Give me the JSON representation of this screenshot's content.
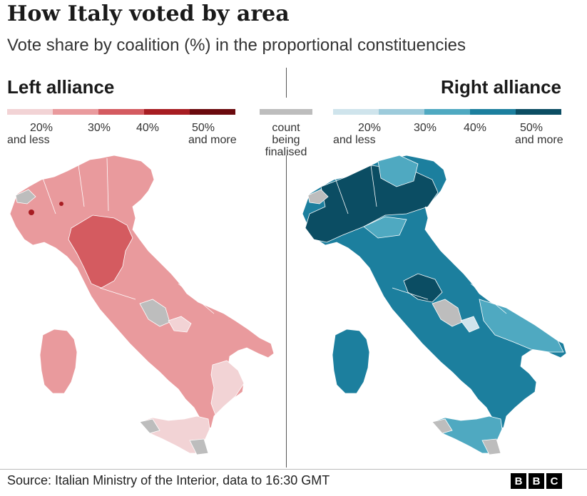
{
  "title": "How Italy voted by area",
  "subtitle": "Vote share by coalition (%) in the proportional constituencies",
  "left_panel": {
    "heading": "Left alliance",
    "legend_colors": [
      "#f2d3d5",
      "#e99a9d",
      "#d45b60",
      "#a71d22",
      "#6b0a0e"
    ],
    "legend_labels": {
      "low_value": "20%",
      "low_text": "and less",
      "mid1": "30%",
      "mid2": "40%",
      "high_value": "50%",
      "high_text": "and more"
    }
  },
  "right_panel": {
    "heading": "Right alliance",
    "legend_colors": [
      "#cfe4ec",
      "#9dcbdb",
      "#4fa9c1",
      "#1c7f9e",
      "#0b4d63"
    ],
    "legend_labels": {
      "low_value": "20%",
      "low_text": "and less",
      "mid1": "30%",
      "mid2": "40%",
      "high_value": "50%",
      "high_text": "and more"
    }
  },
  "no_data": {
    "color": "#bdbdbd",
    "label_line1": "count",
    "label_line2": "being",
    "label_line3": "finalised"
  },
  "source": "Source: Italian Ministry of the Interior, data to 16:30 GMT",
  "logo": "BBC"
}
